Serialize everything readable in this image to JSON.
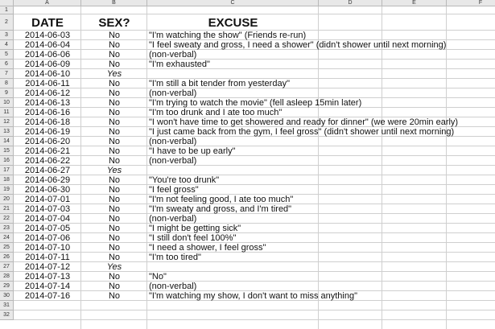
{
  "sheet": {
    "column_letters": [
      "A",
      "B",
      "C",
      "D",
      "E",
      "F"
    ],
    "row_numbers": [
      "1",
      "2",
      "3",
      "4",
      "5",
      "6",
      "7",
      "8",
      "9",
      "10",
      "11",
      "12",
      "13",
      "14",
      "15",
      "16",
      "17",
      "18",
      "19",
      "20",
      "21",
      "22",
      "23",
      "24",
      "25",
      "26",
      "27",
      "28",
      "29",
      "30",
      "31",
      "32"
    ],
    "headers": [
      "DATE",
      "SEX?",
      "EXCUSE"
    ],
    "rows": [
      [
        "2014-06-03",
        "No",
        "\"I'm watching the show\" (Friends re-run)"
      ],
      [
        "2014-06-04",
        "No",
        "\"I feel sweaty and gross, I need a shower\" (didn't shower until next morning)"
      ],
      [
        "2014-06-06",
        "No",
        "(non-verbal)"
      ],
      [
        "2014-06-09",
        "No",
        "\"I'm exhausted\""
      ],
      [
        "2014-06-10",
        "Yes"
      ],
      [
        "2014-06-11",
        "No",
        "\"I'm still a bit tender from yesterday\""
      ],
      [
        "2014-06-12",
        "No",
        "(non-verbal)"
      ],
      [
        "2014-06-13",
        "No",
        "\"I'm trying to watch the movie\" (fell asleep 15min later)"
      ],
      [
        "2014-06-16",
        "No",
        "\"I'm too drunk and I ate too much\""
      ],
      [
        "2014-06-18",
        "No",
        "\"I won't have time to get showered and ready for dinner\" (we were 20min early)"
      ],
      [
        "2014-06-19",
        "No",
        "\"I just came back from the gym, I feel gross\" (didn't shower until next morning)"
      ],
      [
        "2014-06-20",
        "No",
        "(non-verbal)"
      ],
      [
        "2014-06-21",
        "No",
        "\"I have to be up early\""
      ],
      [
        "2014-06-22",
        "No",
        "(non-verbal)"
      ],
      [
        "2014-06-27",
        "Yes"
      ],
      [
        "2014-06-29",
        "No",
        "\"You're too drunk\""
      ],
      [
        "2014-06-30",
        "No",
        "\"I feel gross\""
      ],
      [
        "2014-07-01",
        "No",
        "\"I'm not feeling good, I ate too much\""
      ],
      [
        "2014-07-03",
        "No",
        "\"I'm sweaty and gross, and I'm tired\""
      ],
      [
        "2014-07-04",
        "No",
        "(non-verbal)"
      ],
      [
        "2014-07-05",
        "No",
        "\"I might be getting sick\""
      ],
      [
        "2014-07-06",
        "No",
        "\"I still don't feel 100%\""
      ],
      [
        "2014-07-10",
        "No",
        "\"I need a shower, I feel gross\""
      ],
      [
        "2014-07-11",
        "No",
        "\"I'm too tired\""
      ],
      [
        "2014-07-12",
        "Yes"
      ],
      [
        "2014-07-13",
        "No",
        "\"No\""
      ],
      [
        "2014-07-14",
        "No",
        "(non-verbal)"
      ],
      [
        "2014-07-16",
        "No",
        "\"I'm watching my show, I don't want to miss anything\""
      ]
    ]
  }
}
